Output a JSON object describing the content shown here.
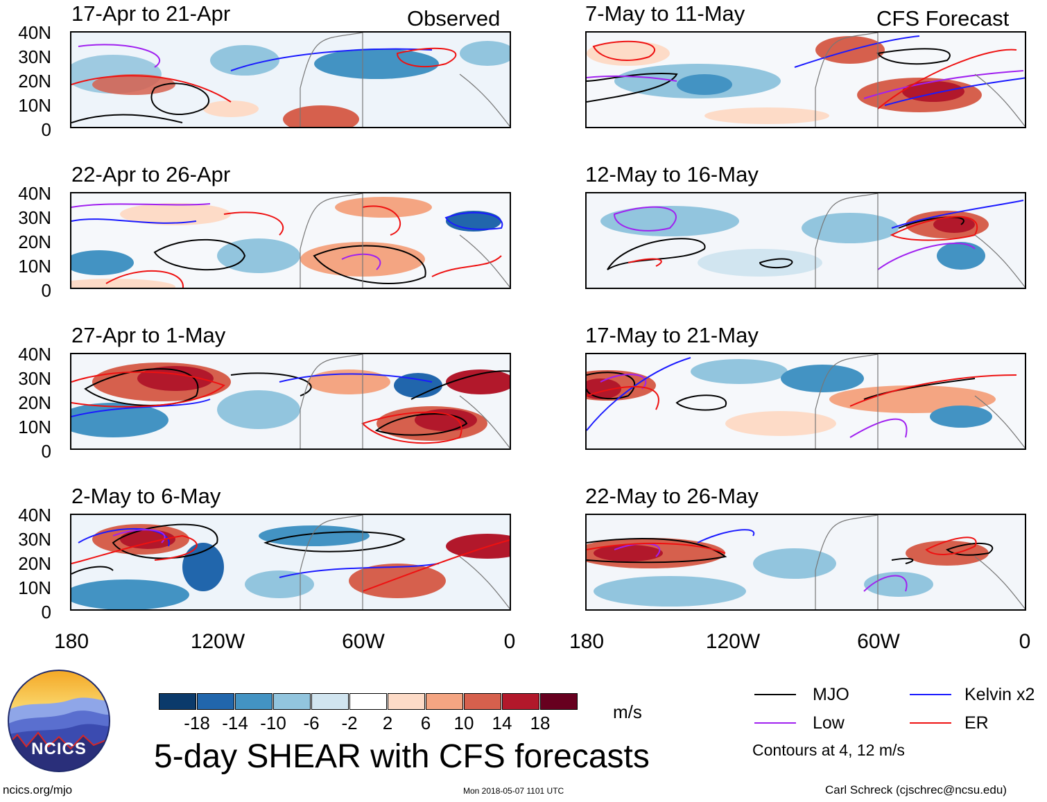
{
  "header": {
    "observed_label": "Observed",
    "forecast_label": "CFS Forecast"
  },
  "panels": {
    "left": [
      {
        "title": "17-Apr to 21-Apr"
      },
      {
        "title": "22-Apr to 26-Apr"
      },
      {
        "title": "27-Apr to 1-May"
      },
      {
        "title": "2-May to 6-May"
      }
    ],
    "right": [
      {
        "title": "7-May to 11-May"
      },
      {
        "title": "12-May to 16-May"
      },
      {
        "title": "17-May to 21-May"
      },
      {
        "title": "22-May to 26-May"
      }
    ]
  },
  "axes": {
    "lat_labels": [
      "40N",
      "30N",
      "20N",
      "10N",
      "0"
    ],
    "lon_labels": [
      "180",
      "120W",
      "60W",
      "0"
    ]
  },
  "colorbar": {
    "colors": [
      "#0b3a6b",
      "#2166ac",
      "#4393c3",
      "#92c5de",
      "#d1e5f0",
      "#ffffff",
      "#fddbc7",
      "#f4a582",
      "#d6604d",
      "#b2182b",
      "#67001f"
    ],
    "tick_labels": [
      "-18",
      "-14",
      "-10",
      "-6",
      "-2",
      "2",
      "6",
      "10",
      "14",
      "18"
    ],
    "units": "m/s"
  },
  "title": "5-day SHEAR with CFS forecasts",
  "legend": {
    "items": [
      {
        "label": "MJO",
        "color": "#000000"
      },
      {
        "label": "Kelvin x2",
        "color": "#1a1aff"
      },
      {
        "label": "Low",
        "color": "#a020f0"
      },
      {
        "label": "ER",
        "color": "#ee1111"
      }
    ],
    "note": "Contours at 4, 12 m/s"
  },
  "logo": {
    "text": "NCICS"
  },
  "footer": {
    "url": "ncics.org/mjo",
    "timestamp": "Mon 2018-05-07 1101 UTC",
    "credit": "Carl Schreck (cjschrec@ncsu.edu)"
  }
}
